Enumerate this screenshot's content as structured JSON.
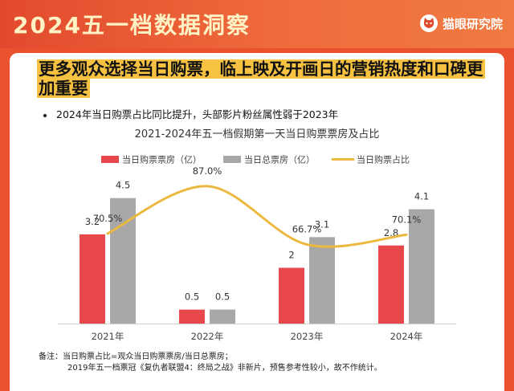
{
  "header": {
    "title": "2024五一档数据洞察",
    "brand": "猫眼研究院",
    "logo_icon": "cat-face-icon"
  },
  "headline": "更多观众选择当日购票，临上映及开画日的营销热度和口碑更加重要",
  "bullet": "2024年当日购票占比同比提升，头部影片粉丝属性弱于2023年",
  "note": {
    "line1": "备注：当日购票占比=观众当日购票票房/当日总票房；",
    "line2": "2019年五一档票冠《复仇者联盟4：终局之战》非新片，预售参考性较小，故不作统计。"
  },
  "colors": {
    "banner": "#e24a2e",
    "accent_yellow": "#f7c242",
    "bar_red": "#e8474c",
    "bar_gray": "#a8a8a8",
    "line_yellow": "#ebb93f"
  },
  "chart_data": {
    "type": "bar",
    "title": "2021-2024年五一档假期第一天当日购票票房及占比",
    "categories": [
      "2021年",
      "2022年",
      "2023年",
      "2024年"
    ],
    "series": [
      {
        "name": "当日购票票房（亿）",
        "type": "bar",
        "values": [
          3.2,
          0.5,
          2,
          2.8
        ],
        "labels": [
          "3.2",
          "0.5",
          "2",
          "2.8"
        ]
      },
      {
        "name": "当日总票房（亿）",
        "type": "bar",
        "values": [
          4.5,
          0.5,
          3.1,
          4.1
        ],
        "labels": [
          "4.5",
          "0.5",
          "3.1",
          "4.1"
        ]
      },
      {
        "name": "当日购票占比",
        "type": "line",
        "smooth": true,
        "values": [
          70.5,
          87.0,
          66.7,
          70.1
        ],
        "labels": [
          "70.5%",
          "87.0%",
          "66.7%",
          "70.1%"
        ]
      }
    ],
    "ylim": [
      0,
      5.5
    ],
    "line_ylim": [
      40,
      92
    ],
    "legend_position": "top",
    "grid": false
  }
}
